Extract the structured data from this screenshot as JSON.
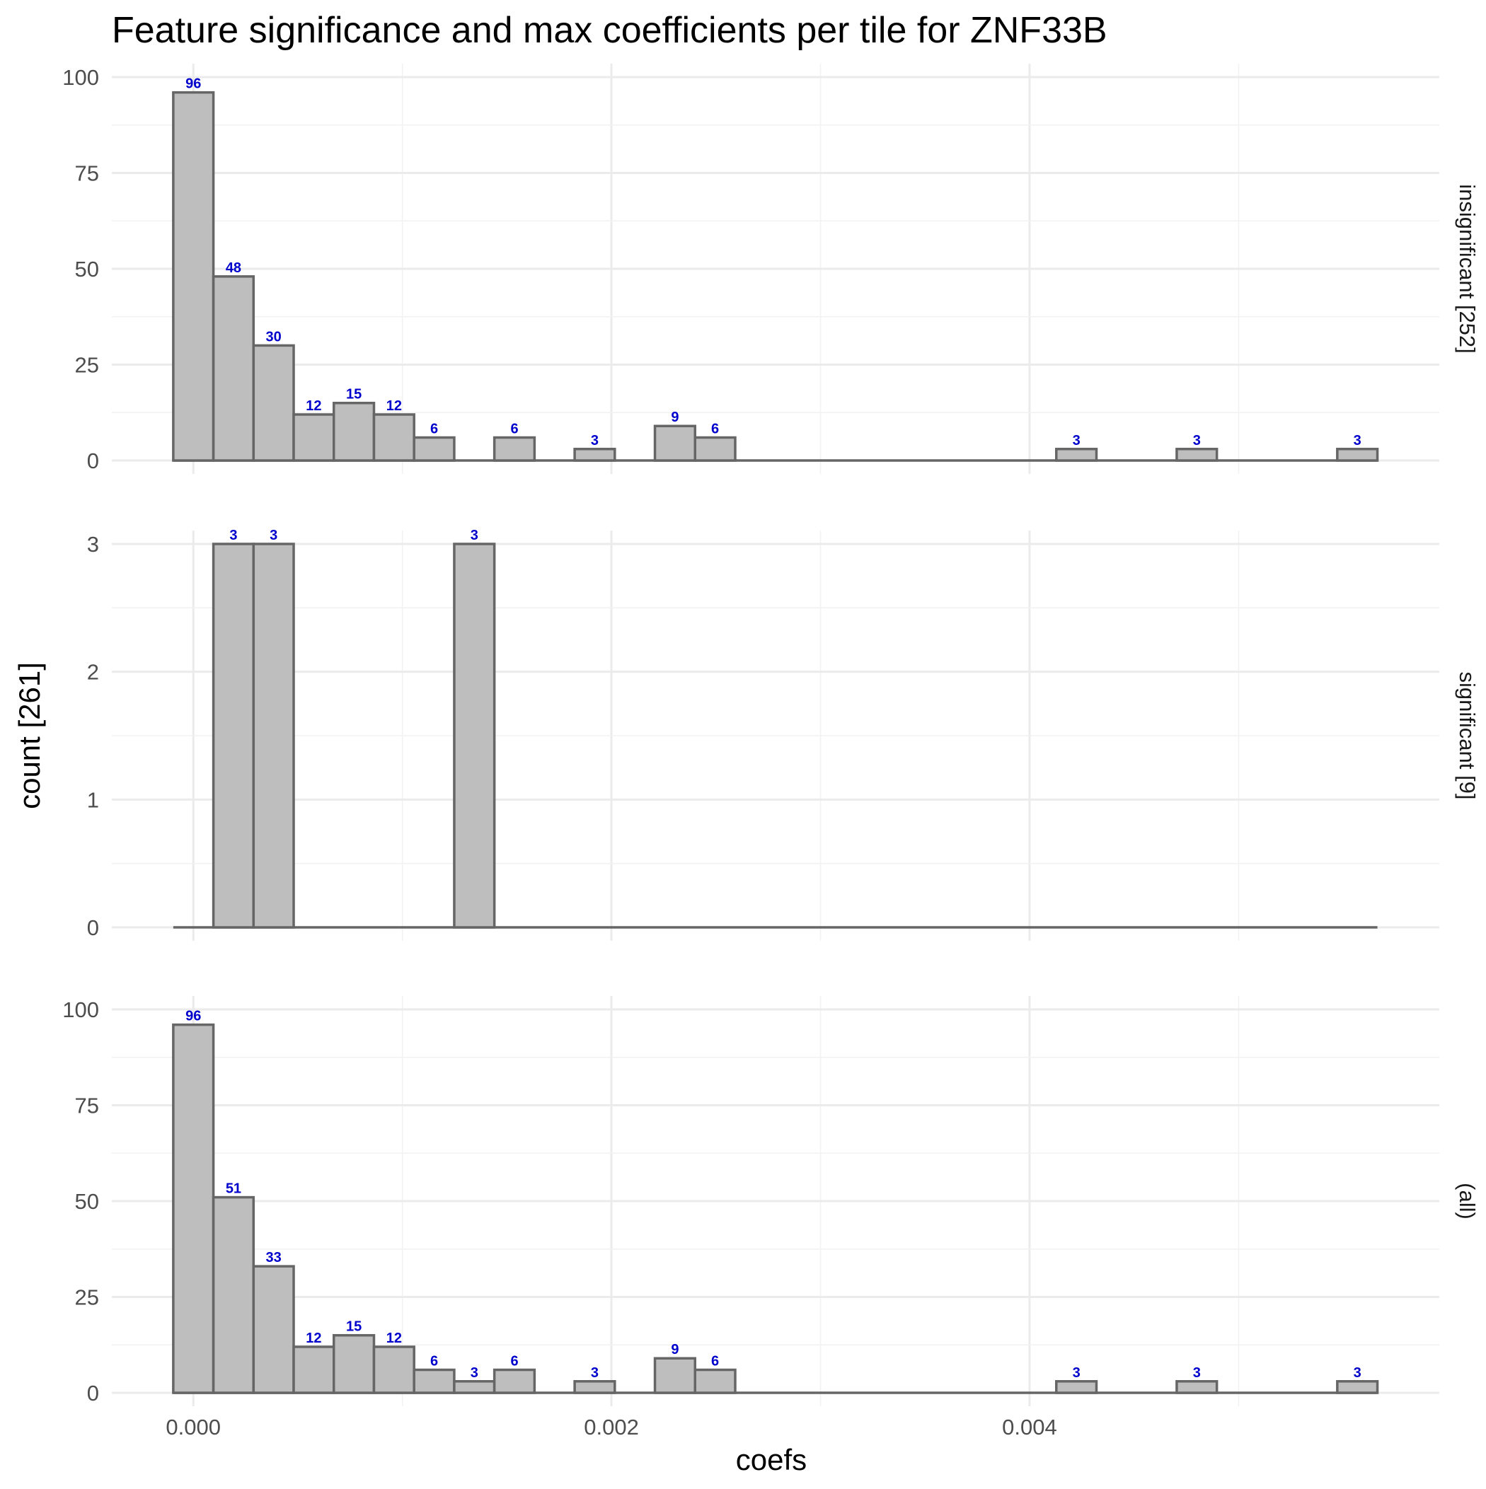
{
  "chart_data": {
    "type": "bar",
    "title": "Feature significance and max coefficients per tile for ZNF33B",
    "xlabel": "coefs",
    "ylabel": "count [261]",
    "x_ticks": [
      "0.000",
      "0.002",
      "0.004"
    ],
    "x_tick_values": [
      0.0,
      0.002,
      0.004
    ],
    "xlim": [
      -0.00039,
      0.00596
    ],
    "bin_width": 0.000192,
    "bin_centers": [
      0.0,
      0.000192,
      0.000384,
      0.000576,
      0.000768,
      0.00096,
      0.001152,
      0.001344,
      0.001536,
      0.001728,
      0.00192,
      0.002112,
      0.002304,
      0.002496,
      0.002688,
      0.00288,
      0.003072,
      0.003264,
      0.003456,
      0.003648,
      0.00384,
      0.004032,
      0.004224,
      0.004416,
      0.004608,
      0.0048,
      0.004992,
      0.005184,
      0.005376,
      0.005568
    ],
    "grid": "on",
    "panels": [
      {
        "strip_label": "insignificant [252]",
        "ylim": [
          0,
          100
        ],
        "y_ticks": [
          "0",
          "25",
          "50",
          "75",
          "100"
        ],
        "y_tick_values": [
          0,
          25,
          50,
          75,
          100
        ],
        "values": [
          96,
          48,
          30,
          12,
          15,
          12,
          6,
          0,
          6,
          0,
          3,
          0,
          9,
          6,
          0,
          0,
          0,
          0,
          0,
          0,
          0,
          0,
          3,
          0,
          0,
          3,
          0,
          0,
          0,
          3
        ]
      },
      {
        "strip_label": "significant [9]",
        "ylim": [
          0,
          3
        ],
        "y_ticks": [
          "0",
          "1",
          "2",
          "3"
        ],
        "y_tick_values": [
          0,
          1,
          2,
          3
        ],
        "values": [
          0,
          3,
          3,
          0,
          0,
          0,
          0,
          3,
          0,
          0,
          0,
          0,
          0,
          0,
          0,
          0,
          0,
          0,
          0,
          0,
          0,
          0,
          0,
          0,
          0,
          0,
          0,
          0,
          0,
          0
        ]
      },
      {
        "strip_label": "(all)",
        "ylim": [
          0,
          100
        ],
        "y_ticks": [
          "0",
          "25",
          "50",
          "75",
          "100"
        ],
        "y_tick_values": [
          0,
          25,
          50,
          75,
          100
        ],
        "values": [
          96,
          51,
          33,
          12,
          15,
          12,
          6,
          3,
          6,
          0,
          3,
          0,
          9,
          6,
          0,
          0,
          0,
          0,
          0,
          0,
          0,
          0,
          3,
          0,
          0,
          3,
          0,
          0,
          0,
          3
        ]
      }
    ],
    "colors": {
      "bar_fill": "#bebebe",
      "bar_outline": "#666666",
      "bar_label": "#0000cc",
      "grid": "#ebebeb"
    }
  }
}
